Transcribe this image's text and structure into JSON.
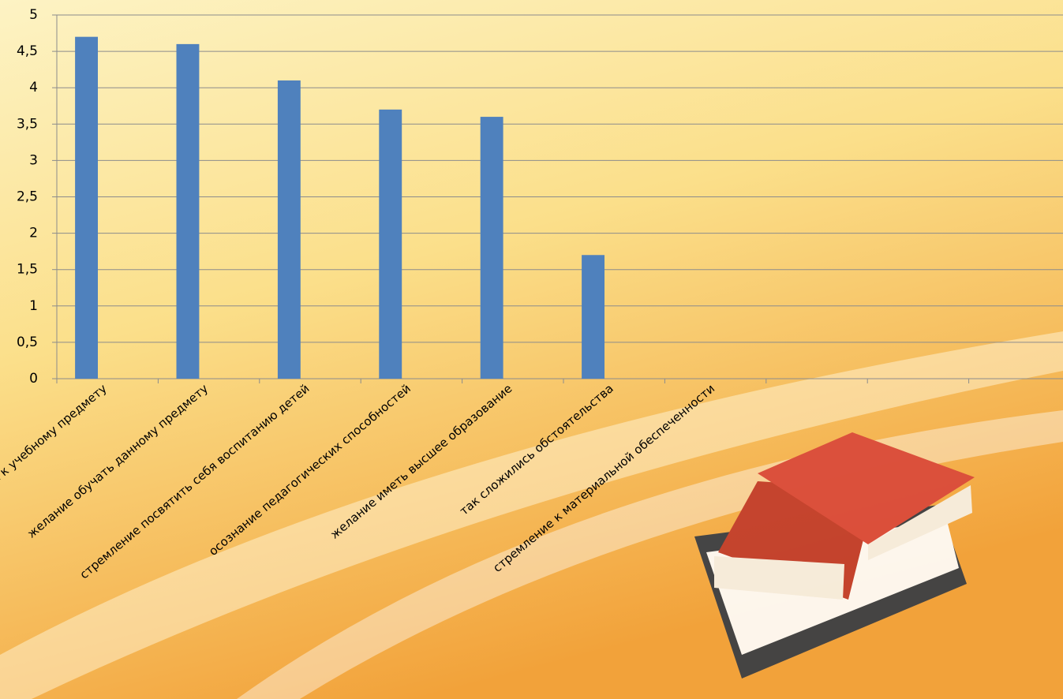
{
  "chart_data": {
    "type": "bar",
    "categories": [
      "интерес к учебному предмету",
      "желание обучать данному предмету",
      "стремление посвятить себя воспитанию детей",
      "осознание педагогических способностей",
      "желание иметь высшее образование",
      "так сложились обстоятельства",
      "стремление к материальной обеспеченности",
      null,
      null,
      null
    ],
    "values": [
      4.7,
      4.6,
      4.1,
      3.7,
      3.6,
      1.7,
      null,
      null,
      null,
      null
    ],
    "color": "#4f81bd",
    "ylim": [
      0,
      5
    ],
    "yticks": [
      0,
      {
        "value": 0.5,
        "label": "0,5"
      },
      1,
      {
        "value": 1.5,
        "label": "1,5"
      },
      2,
      {
        "value": 2.5,
        "label": "2,5"
      },
      3,
      {
        "value": 3.5,
        "label": "3,5"
      },
      4,
      {
        "value": 4.5,
        "label": "4,5"
      },
      5
    ],
    "grid": true
  }
}
